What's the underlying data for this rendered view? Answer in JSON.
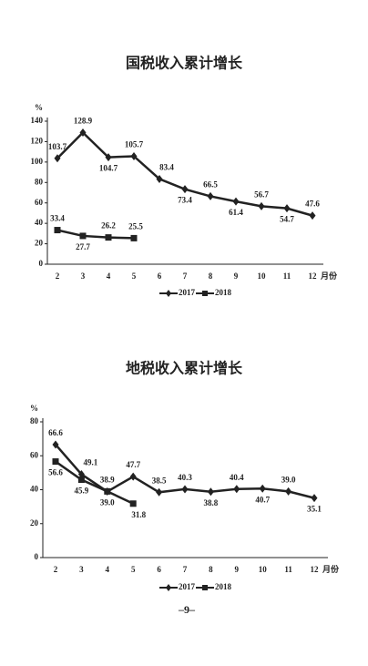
{
  "chart_data": [
    {
      "type": "line",
      "title": "国税收入累计增长",
      "y_unit": "%",
      "x_unit": "月份",
      "categories": [
        "2",
        "3",
        "4",
        "5",
        "6",
        "7",
        "8",
        "9",
        "10",
        "11",
        "12"
      ],
      "ylim": [
        0,
        140
      ],
      "yticks": [
        0,
        20,
        40,
        60,
        80,
        100,
        120,
        140
      ],
      "series": [
        {
          "name": "2017",
          "color": "#222222",
          "marker": "diamond",
          "values": [
            103.7,
            128.9,
            104.7,
            105.7,
            83.4,
            73.4,
            66.5,
            61.4,
            56.7,
            54.7,
            47.6
          ]
        },
        {
          "name": "2018",
          "color": "#222222",
          "marker": "square",
          "values": [
            33.4,
            27.7,
            26.2,
            25.5,
            null,
            null,
            null,
            null,
            null,
            null,
            null
          ]
        }
      ]
    },
    {
      "type": "line",
      "title": "地税收入累计增长",
      "y_unit": "%",
      "x_unit": "月份",
      "categories": [
        "2",
        "3",
        "4",
        "5",
        "6",
        "7",
        "8",
        "9",
        "10",
        "11",
        "12"
      ],
      "ylim": [
        0,
        80
      ],
      "yticks": [
        0,
        20,
        40,
        60,
        80
      ],
      "series": [
        {
          "name": "2017",
          "color": "#222222",
          "marker": "diamond",
          "values": [
            66.6,
            49.1,
            38.9,
            47.7,
            38.5,
            40.3,
            38.8,
            40.4,
            40.7,
            39,
            35.1
          ],
          "value_labels": [
            "66.6",
            "49.1",
            "38.9",
            "47.7",
            "38.5",
            "40.3",
            "38.8",
            "40.4",
            "40.7",
            "39.0",
            "35.1"
          ]
        },
        {
          "name": "2018",
          "color": "#222222",
          "marker": "square",
          "values": [
            56.6,
            45.9,
            39,
            31.8,
            null,
            null,
            null,
            null,
            null,
            null,
            null
          ],
          "value_labels": [
            "56.6",
            "45.9",
            "39.0",
            "31.8",
            null,
            null,
            null,
            null,
            null,
            null,
            null
          ]
        }
      ]
    }
  ],
  "page_number": "–9–"
}
